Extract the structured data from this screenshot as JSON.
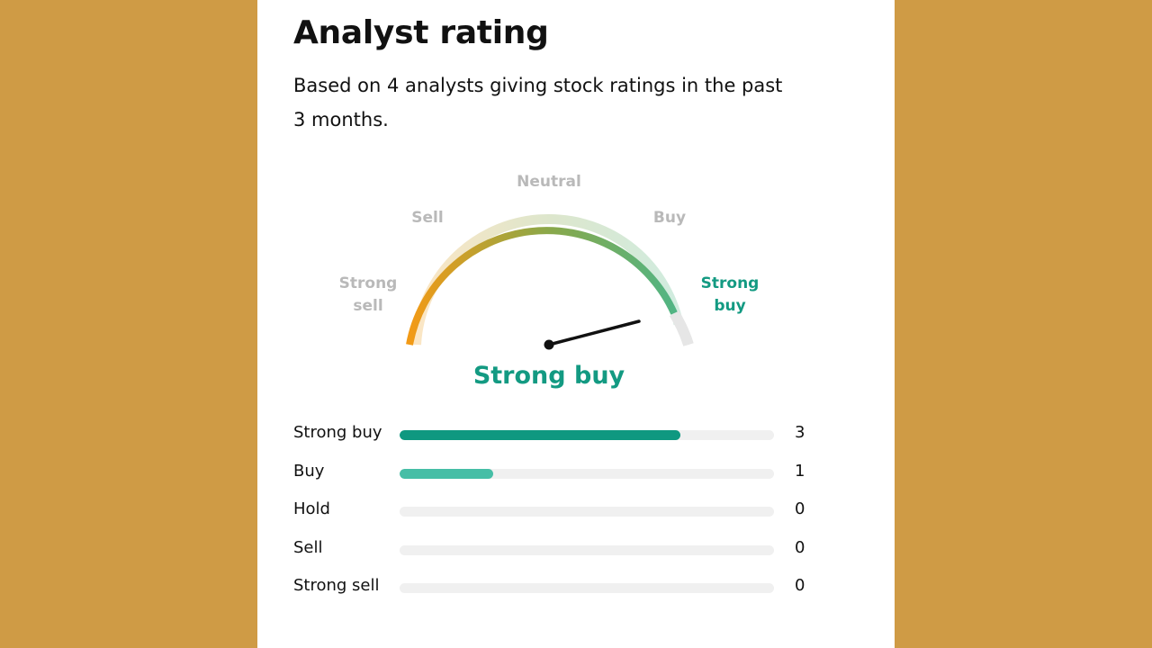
{
  "title": "Analyst rating",
  "subtitle": "Based on 4 analysts giving stock ratings in the past 3 months.",
  "gauge": {
    "labels": {
      "strong_sell_1": "Strong",
      "strong_sell_2": "sell",
      "sell": "Sell",
      "neutral": "Neutral",
      "buy": "Buy",
      "strong_buy_1": "Strong",
      "strong_buy_2": "buy"
    },
    "active_label": "Strong buy",
    "colors": {
      "sell": "#f29a16",
      "neutral": "#8aa84a",
      "buy": "#4bb68a",
      "inactive_label": "#b9b9b9",
      "active_label": "#139a82",
      "needle": "#111111"
    }
  },
  "rating": "Strong buy",
  "breakdown": {
    "total": 4,
    "rows": [
      {
        "label": "Strong buy",
        "count": "3",
        "color": "#0f9880"
      },
      {
        "label": "Buy",
        "count": "1",
        "color": "#46bea6"
      },
      {
        "label": "Hold",
        "count": "0",
        "color": "#cccccc"
      },
      {
        "label": "Sell",
        "count": "0",
        "color": "#f0a35a"
      },
      {
        "label": "Strong sell",
        "count": "0",
        "color": "#f29a16"
      }
    ]
  }
}
